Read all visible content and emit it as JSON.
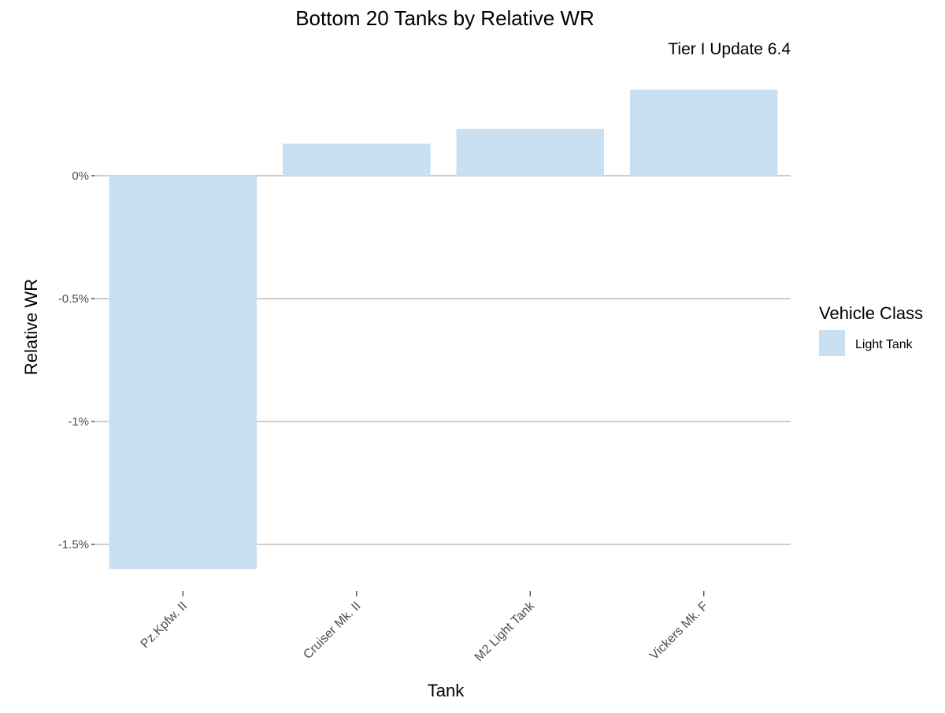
{
  "chart_data": {
    "type": "bar",
    "title": "Bottom 20 Tanks by Relative WR",
    "subtitle": "Tier I Update 6.4",
    "xlabel": "Tank",
    "ylabel": "Relative WR",
    "categories": [
      "Pz.Kpfw. II",
      "Cruiser Mk. II",
      "M2 Light Tank",
      "Vickers Mk. F"
    ],
    "series": [
      {
        "name": "Light Tank",
        "values": [
          -1.6,
          0.13,
          0.19,
          0.35
        ],
        "color": "#c9dff2"
      }
    ],
    "ylim": [
      -1.65,
      0.4
    ],
    "yticks": [
      0,
      -0.5,
      -1,
      -1.5
    ],
    "ytick_labels": [
      "0%",
      "-0.5%",
      "-1%",
      "-1.5%"
    ],
    "grid": true,
    "legend": {
      "title": "Vehicle Class",
      "placement": "right",
      "entries": [
        "Light Tank"
      ]
    }
  }
}
